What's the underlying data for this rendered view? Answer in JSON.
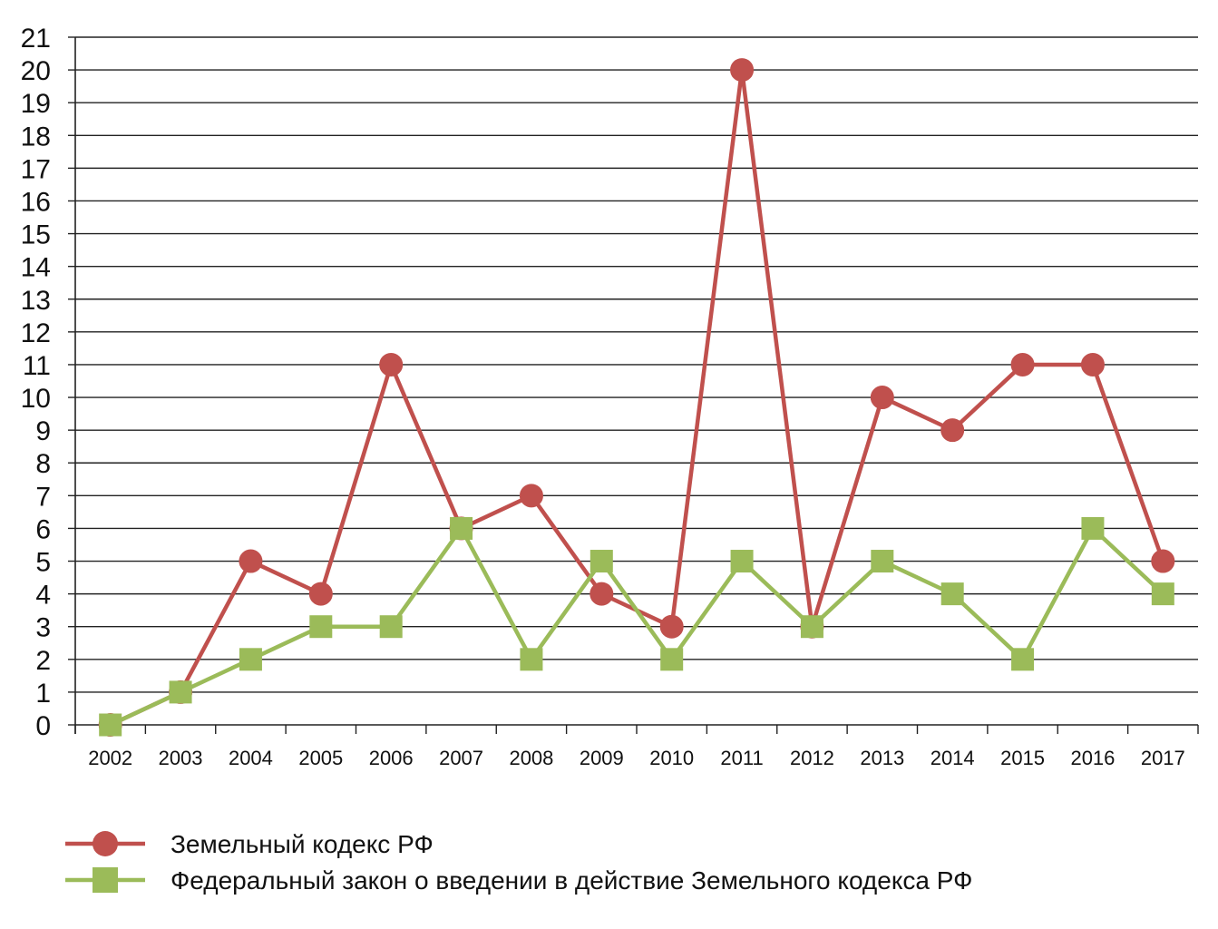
{
  "chart_data": {
    "type": "line",
    "title": "",
    "xlabel": "",
    "ylabel": "",
    "ylim": [
      0,
      21
    ],
    "grid": true,
    "legend_position": "bottom",
    "categories": [
      "2002",
      "2003",
      "2004",
      "2005",
      "2006",
      "2007",
      "2008",
      "2009",
      "2010",
      "2011",
      "2012",
      "2013",
      "2014",
      "2015",
      "2016",
      "2017"
    ],
    "y_ticks": [
      "0",
      "1",
      "2",
      "3",
      "4",
      "5",
      "6",
      "7",
      "8",
      "9",
      "10",
      "11",
      "12",
      "13",
      "14",
      "15",
      "16",
      "17",
      "18",
      "19",
      "20",
      "21"
    ],
    "series": [
      {
        "name": "Земельный кодекс РФ",
        "marker": "circle",
        "color": "#c0504d",
        "values": [
          0,
          1,
          5,
          4,
          11,
          6,
          7,
          4,
          3,
          20,
          3,
          10,
          9,
          11,
          11,
          5
        ]
      },
      {
        "name": "Федеральный закон о введении в действие Земельного кодекса РФ",
        "marker": "square",
        "color": "#9bbb59",
        "values": [
          0,
          1,
          2,
          3,
          3,
          6,
          2,
          5,
          2,
          5,
          3,
          5,
          4,
          2,
          6,
          4
        ]
      }
    ]
  }
}
